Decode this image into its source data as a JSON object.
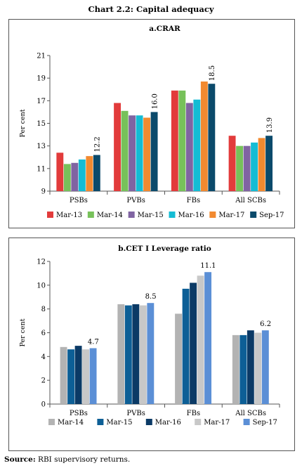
{
  "page": {
    "title": "Chart 2.2: Capital adequacy",
    "source_label": "Source:",
    "source_text": "RBI supervisory returns."
  },
  "chart_data": [
    {
      "type": "bar",
      "title": "a.CRAR",
      "ylabel": "Per cent",
      "xlabel": "",
      "ylim": [
        9,
        21
      ],
      "yticks": [
        9,
        11,
        13,
        15,
        17,
        19,
        21
      ],
      "grid": false,
      "legend": "bottom",
      "categories": [
        "PSBs",
        "PVBs",
        "FBs",
        "All SCBs"
      ],
      "series": [
        {
          "name": "Mar-13",
          "color": "#e23b3b",
          "values": [
            12.4,
            16.8,
            17.9,
            13.9
          ]
        },
        {
          "name": "Mar-14",
          "color": "#77c15a",
          "values": [
            11.4,
            16.1,
            17.9,
            13.0
          ]
        },
        {
          "name": "Mar-15",
          "color": "#8064a2",
          "values": [
            11.5,
            15.7,
            16.8,
            13.0
          ]
        },
        {
          "name": "Mar-16",
          "color": "#14bcd4",
          "values": [
            11.8,
            15.7,
            17.1,
            13.3
          ]
        },
        {
          "name": "Mar-17",
          "color": "#f28a30",
          "values": [
            12.1,
            15.5,
            18.7,
            13.7
          ]
        },
        {
          "name": "Sep-17",
          "color": "#0b4a6b",
          "values": [
            12.2,
            16.0,
            18.5,
            13.9
          ]
        }
      ],
      "data_labels": [
        {
          "category": "PSBs",
          "series": "Sep-17",
          "text": "12.2"
        },
        {
          "category": "PVBs",
          "series": "Sep-17",
          "text": "16.0"
        },
        {
          "category": "FBs",
          "series": "Sep-17",
          "text": "18.5"
        },
        {
          "category": "All SCBs",
          "series": "Sep-17",
          "text": "13.9"
        }
      ]
    },
    {
      "type": "bar",
      "title": "b.CET I Leverage ratio",
      "ylabel": "Per cent",
      "xlabel": "",
      "ylim": [
        0,
        12
      ],
      "yticks": [
        0,
        2,
        4,
        6,
        8,
        10,
        12
      ],
      "grid": false,
      "legend": "bottom",
      "categories": [
        "PSBs",
        "PVBs",
        "FBs",
        "All SCBs"
      ],
      "series": [
        {
          "name": "Mar-14",
          "color": "#b3b3b3",
          "values": [
            4.8,
            8.4,
            7.6,
            5.8
          ]
        },
        {
          "name": "Mar-15",
          "color": "#0d5f96",
          "values": [
            4.6,
            8.3,
            9.7,
            5.8
          ]
        },
        {
          "name": "Mar-16",
          "color": "#0b3a66",
          "values": [
            4.9,
            8.4,
            10.2,
            6.2
          ]
        },
        {
          "name": "Mar-17",
          "color": "#c8c8c8",
          "values": [
            4.6,
            8.3,
            10.8,
            6.0
          ]
        },
        {
          "name": "Sep-17",
          "color": "#5b8fd6",
          "values": [
            4.7,
            8.5,
            11.1,
            6.2
          ]
        }
      ],
      "data_labels": [
        {
          "category": "PSBs",
          "series": "Sep-17",
          "text": "4.7"
        },
        {
          "category": "PVBs",
          "series": "Sep-17",
          "text": "8.5"
        },
        {
          "category": "FBs",
          "series": "Sep-17",
          "text": "11.1"
        },
        {
          "category": "All SCBs",
          "series": "Sep-17",
          "text": "6.2"
        }
      ]
    }
  ]
}
